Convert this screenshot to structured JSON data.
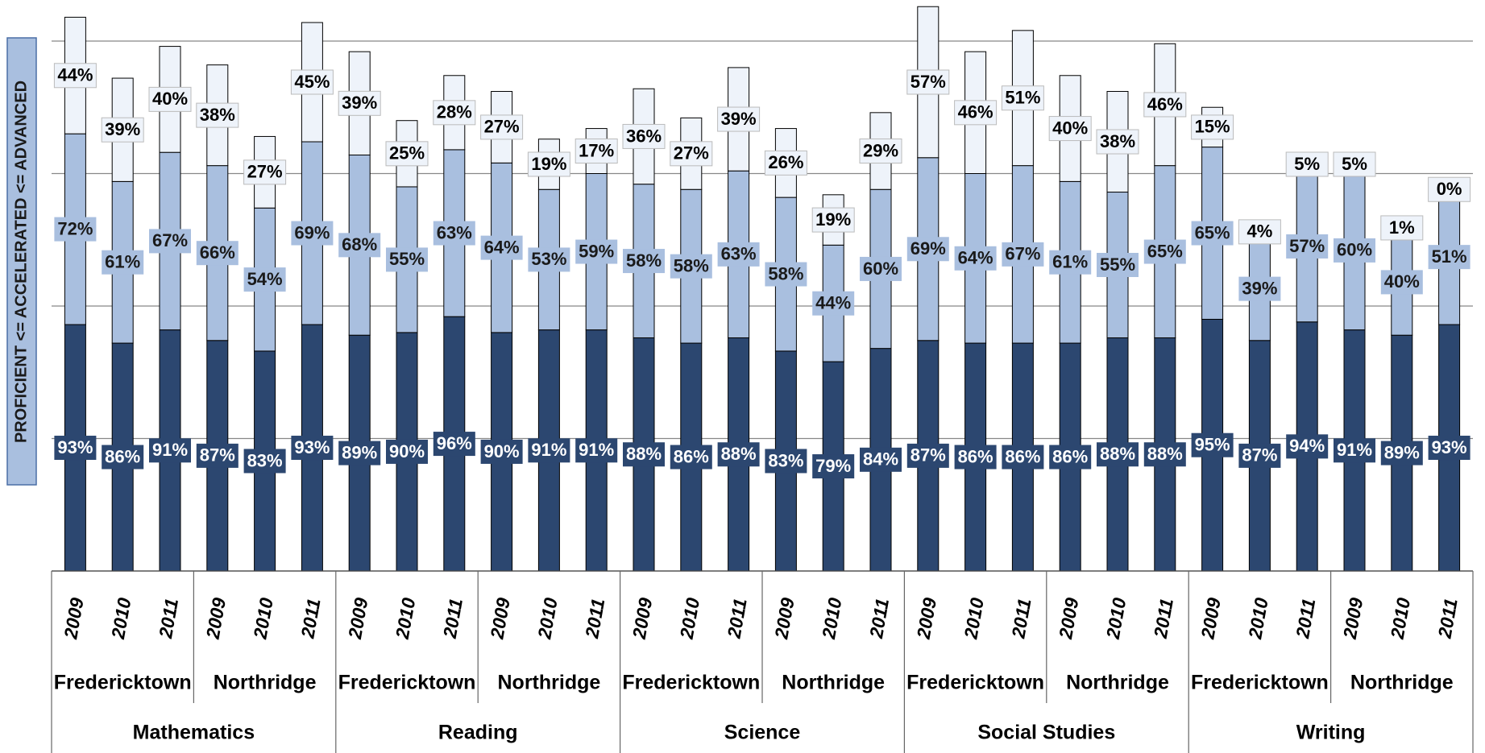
{
  "chart_data": {
    "type": "stacked_bar",
    "y_axis_label": "PROFICIENT <= ACCELERATED <= ADVANCED",
    "categories": [
      "2009",
      "2010",
      "2011",
      "2009",
      "2010",
      "2011",
      "2009",
      "2010",
      "2011",
      "2009",
      "2010",
      "2011",
      "2009",
      "2010",
      "2011",
      "2009",
      "2010",
      "2011",
      "2009",
      "2010",
      "2011",
      "2009",
      "2010",
      "2011",
      "2009",
      "2010",
      "2011",
      "2009",
      "2010",
      "2011"
    ],
    "schools": [
      "Fredericktown",
      "Northridge",
      "Fredericktown",
      "Northridge",
      "Fredericktown",
      "Northridge",
      "Fredericktown",
      "Northridge",
      "Fredericktown",
      "Northridge"
    ],
    "subjects": [
      "Mathematics",
      "Reading",
      "Science",
      "Social Studies",
      "Writing"
    ],
    "series": [
      {
        "color": "#2c4770",
        "label_color": "#ffffff",
        "values": [
          93,
          86,
          91,
          87,
          83,
          93,
          89,
          90,
          96,
          90,
          91,
          91,
          88,
          86,
          88,
          83,
          79,
          84,
          87,
          86,
          86,
          86,
          88,
          88,
          95,
          87,
          94,
          91,
          89,
          93
        ],
        "value_labels": [
          "93%",
          "86%",
          "91%",
          "87%",
          "83%",
          "93%",
          "89%",
          "90%",
          "96%",
          "90%",
          "91%",
          "91%",
          "88%",
          "86%",
          "88%",
          "83%",
          "79%",
          "84%",
          "87%",
          "86%",
          "86%",
          "86%",
          "88%",
          "88%",
          "95%",
          "87%",
          "94%",
          "91%",
          "89%",
          "93%"
        ]
      },
      {
        "color": "#a9bfdf",
        "label_color": "#1a1a1a",
        "values": [
          72,
          61,
          67,
          66,
          54,
          69,
          68,
          55,
          63,
          64,
          53,
          59,
          58,
          58,
          63,
          58,
          44,
          60,
          69,
          64,
          67,
          61,
          55,
          65,
          65,
          39,
          57,
          60,
          40,
          51
        ],
        "value_labels": [
          "72%",
          "61%",
          "67%",
          "66%",
          "54%",
          "69%",
          "68%",
          "55%",
          "63%",
          "64%",
          "53%",
          "59%",
          "58%",
          "58%",
          "63%",
          "58%",
          "44%",
          "60%",
          "69%",
          "64%",
          "67%",
          "61%",
          "55%",
          "65%",
          "65%",
          "39%",
          "57%",
          "60%",
          "40%",
          "51%"
        ]
      },
      {
        "color": "#eef3fa",
        "label_color": "#000000",
        "values": [
          44,
          39,
          40,
          38,
          27,
          45,
          39,
          25,
          28,
          27,
          19,
          17,
          36,
          27,
          39,
          26,
          19,
          29,
          57,
          46,
          51,
          40,
          38,
          46,
          15,
          4,
          5,
          5,
          1,
          0
        ],
        "value_labels": [
          "44%",
          "39%",
          "40%",
          "38%",
          "27%",
          "45%",
          "39%",
          "25%",
          "28%",
          "27%",
          "19%",
          "17%",
          "36%",
          "27%",
          "39%",
          "26%",
          "19%",
          "29%",
          "57%",
          "46%",
          "51%",
          "40%",
          "38%",
          "46%",
          "15%",
          "4%",
          "5%",
          "5%",
          "1%",
          "0%"
        ]
      }
    ],
    "ylim": [
      0,
      200
    ],
    "yticks": [
      0,
      50,
      100,
      150,
      200
    ],
    "grid": true
  }
}
